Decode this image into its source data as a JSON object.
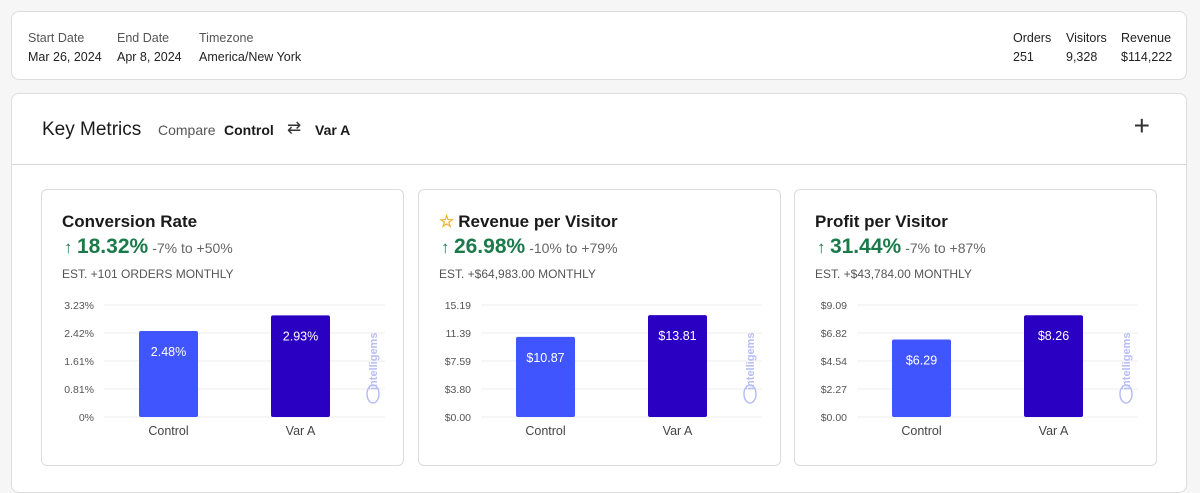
{
  "summary": {
    "start_label": "Start Date",
    "start_value": "Mar 26, 2024",
    "end_label": "End Date",
    "end_value": "Apr 8, 2024",
    "tz_label": "Timezone",
    "tz_value": "America/New York",
    "orders_label": "Orders",
    "orders_value": "251",
    "visitors_label": "Visitors",
    "visitors_value": "9,328",
    "revenue_label": "Revenue",
    "revenue_value": "$114,222"
  },
  "key_metrics": {
    "title": "Key Metrics",
    "compare_label": "Compare",
    "control": "Control",
    "swap_icon": "⇄",
    "variant": "Var A",
    "add_icon": "+"
  },
  "colors": {
    "control": "#4155ff",
    "variant": "#2a00c2",
    "positive": "#1b7a4a",
    "logo": "#b7bdf5"
  },
  "logo": "intelligems",
  "cards": [
    {
      "title": "Conversion Rate",
      "arrow": "↑",
      "lift": "18.32%",
      "range": "-7% to +50%",
      "estimate": "EST. +101 ORDERS MONTHLY",
      "starred": false
    },
    {
      "title": "Revenue per Visitor",
      "arrow": "↑",
      "lift": "26.98%",
      "range": "-10% to +79%",
      "estimate": "EST. +$64,983.00 MONTHLY",
      "starred": true,
      "star_icon": "☆"
    },
    {
      "title": "Profit per Visitor",
      "arrow": "↑",
      "lift": "31.44%",
      "range": "-7% to +87%",
      "estimate": "EST. +$43,784.00 MONTHLY",
      "starred": false
    }
  ],
  "chart_data": [
    {
      "type": "bar",
      "categories": [
        "Control",
        "Var A"
      ],
      "values": [
        2.48,
        2.93
      ],
      "data_labels": [
        "2.48%",
        "2.93%"
      ],
      "yticks": [
        "0%",
        "0.81%",
        "1.61%",
        "2.42%",
        "3.23%"
      ],
      "ylim": [
        0,
        3.23
      ],
      "grid": true
    },
    {
      "type": "bar",
      "categories": [
        "Control",
        "Var A"
      ],
      "values": [
        10.87,
        13.81
      ],
      "data_labels": [
        "$10.87",
        "$13.81"
      ],
      "yticks": [
        "$0.00",
        "$3.80",
        "$7.59",
        "11.39",
        "15.19"
      ],
      "ylim": [
        0,
        15.19
      ],
      "grid": true
    },
    {
      "type": "bar",
      "categories": [
        "Control",
        "Var A"
      ],
      "values": [
        6.29,
        8.26
      ],
      "data_labels": [
        "$6.29",
        "$8.26"
      ],
      "yticks": [
        "$0.00",
        "$2.27",
        "$4.54",
        "$6.82",
        "$9.09"
      ],
      "ylim": [
        0,
        9.09
      ],
      "grid": true
    }
  ]
}
